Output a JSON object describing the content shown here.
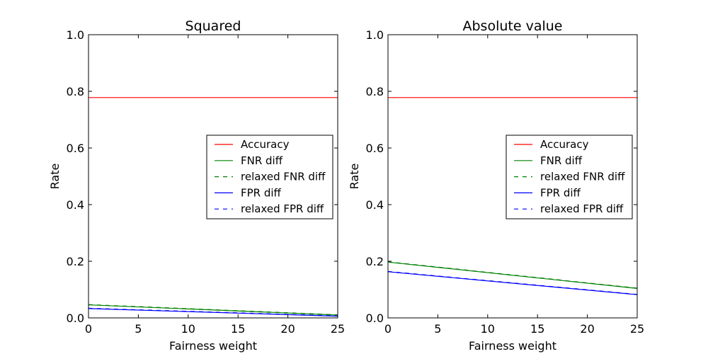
{
  "chart_data": [
    {
      "type": "line",
      "title": "Squared",
      "xlabel": "Fairness weight",
      "ylabel": "Rate",
      "xlim": [
        0,
        25
      ],
      "ylim": [
        0,
        1.0
      ],
      "xticks": [
        "0",
        "5",
        "10",
        "15",
        "20",
        "25"
      ],
      "yticks": [
        "0.0",
        "0.2",
        "0.4",
        "0.6",
        "0.8",
        "1.0"
      ],
      "grid": false,
      "legend_position": "center-right",
      "x": [
        0,
        25
      ],
      "series": [
        {
          "name": "Accuracy",
          "color": "#ff0000",
          "dash": "solid",
          "values": [
            0.778,
            0.778
          ]
        },
        {
          "name": "FNR diff",
          "color": "#008000",
          "dash": "solid",
          "values": [
            0.046,
            0.01
          ]
        },
        {
          "name": "relaxed FNR diff",
          "color": "#008000",
          "dash": "dashed",
          "values": [
            0.047,
            0.011
          ]
        },
        {
          "name": "FPR diff",
          "color": "#0000ff",
          "dash": "solid",
          "values": [
            0.033,
            0.006
          ]
        },
        {
          "name": "relaxed FPR diff",
          "color": "#0000ff",
          "dash": "dashed",
          "values": [
            0.034,
            0.007
          ]
        }
      ]
    },
    {
      "type": "line",
      "title": "Absolute value",
      "xlabel": "Fairness weight",
      "ylabel": "Rate",
      "xlim": [
        0,
        25
      ],
      "ylim": [
        0,
        1.0
      ],
      "xticks": [
        "0",
        "5",
        "10",
        "15",
        "20",
        "25"
      ],
      "yticks": [
        "0.0",
        "0.2",
        "0.4",
        "0.6",
        "0.8",
        "1.0"
      ],
      "grid": false,
      "legend_position": "center-right",
      "x": [
        0,
        25
      ],
      "series": [
        {
          "name": "Accuracy",
          "color": "#ff0000",
          "dash": "solid",
          "values": [
            0.778,
            0.778
          ]
        },
        {
          "name": "FNR diff",
          "color": "#008000",
          "dash": "solid",
          "values": [
            0.197,
            0.104
          ]
        },
        {
          "name": "relaxed FNR diff",
          "color": "#008000",
          "dash": "dashed",
          "values": [
            0.198,
            0.105
          ]
        },
        {
          "name": "FPR diff",
          "color": "#0000ff",
          "dash": "solid",
          "values": [
            0.163,
            0.082
          ]
        },
        {
          "name": "relaxed FPR diff",
          "color": "#0000ff",
          "dash": "dashed",
          "values": [
            0.164,
            0.083
          ]
        }
      ]
    }
  ]
}
